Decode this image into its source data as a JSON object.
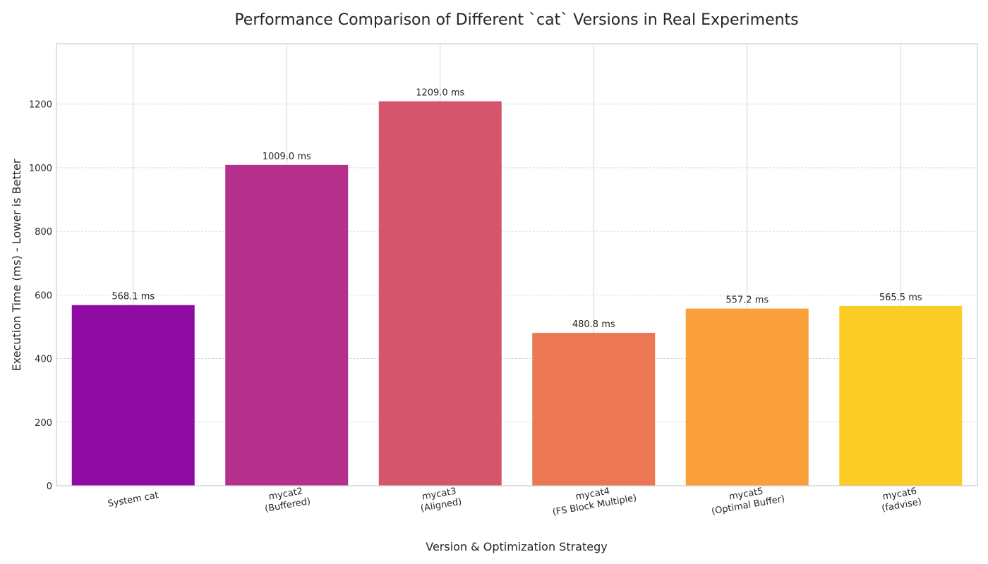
{
  "chart_data": {
    "type": "bar",
    "title": "Performance Comparison of Different `cat` Versions in Real Experiments",
    "xlabel": "Version & Optimization Strategy",
    "ylabel": "Execution Time (ms) - Lower is Better",
    "ylim": [
      0,
      1390
    ],
    "yticks": [
      0,
      200,
      400,
      600,
      800,
      1000,
      1200
    ],
    "grid": true,
    "categories": [
      [
        "System cat"
      ],
      [
        "mycat2",
        "(Buffered)"
      ],
      [
        "mycat3",
        "(Aligned)"
      ],
      [
        "mycat4",
        "(FS Block Multiple)"
      ],
      [
        "mycat5",
        "(Optimal Buffer)"
      ],
      [
        "mycat6",
        "(fadvise)"
      ]
    ],
    "values": [
      568.1,
      1009.0,
      1209.0,
      480.8,
      557.2,
      565.5
    ],
    "value_labels": [
      "568.1 ms",
      "1009.0 ms",
      "1209.0 ms",
      "480.8 ms",
      "557.2 ms",
      "565.5 ms"
    ],
    "colors": [
      "#8e0ca4",
      "#b52f8c",
      "#d5546e",
      "#ec7754",
      "#f99f3b",
      "#fccd25"
    ]
  }
}
